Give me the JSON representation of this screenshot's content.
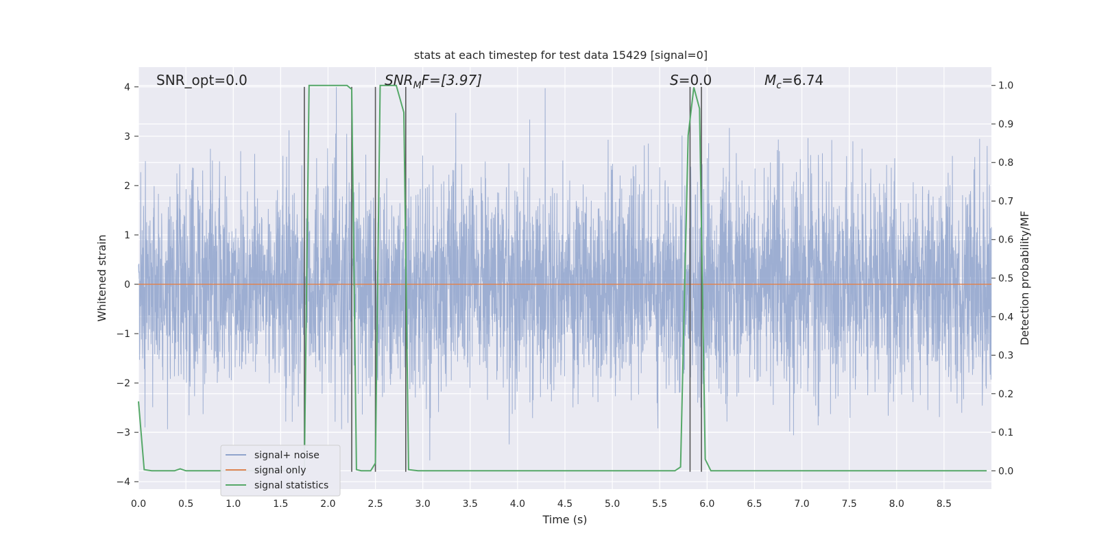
{
  "chart_data": {
    "type": "line",
    "title": "stats at each timestep for test data 15429 [signal=0]",
    "xlabel": "Time (s)",
    "ylabel_left": "Whitened strain",
    "ylabel_right": "Detection probability/MF",
    "xlim": [
      0.0,
      9.0
    ],
    "ylim_left": [
      -4.15,
      4.4
    ],
    "ylim_right": [
      -0.0475,
      1.0475
    ],
    "x_ticks": [
      "0.0",
      "0.5",
      "1.0",
      "1.5",
      "2.0",
      "2.5",
      "3.0",
      "3.5",
      "4.0",
      "4.5",
      "5.0",
      "5.5",
      "6.0",
      "6.5",
      "7.0",
      "7.5",
      "8.0",
      "8.5"
    ],
    "y_ticks_left": [
      "−4",
      "−3",
      "−2",
      "−1",
      "0",
      "1",
      "2",
      "3",
      "4"
    ],
    "y_ticks_right": [
      "0.0",
      "0.1",
      "0.2",
      "0.3",
      "0.4",
      "0.5",
      "0.6",
      "0.7",
      "0.8",
      "0.9",
      "1.0"
    ],
    "grid": true,
    "legend_position": "lower-left",
    "annotations": {
      "snr_opt": "SNR_opt=0.0",
      "snr_mf_main": "SNR",
      "snr_mf_sub": "M",
      "snr_mf_rest": "F=[3.97]",
      "s_main": "S",
      "s_rest": "=0.0",
      "mc_main": "M",
      "mc_sub": "c",
      "mc_rest": "=6.74"
    },
    "series": [
      {
        "name": "signal+ noise",
        "color": "#8fa3cc",
        "kind": "noise",
        "values_description": "gaussian-like whitened noise spanning roughly -3.8 to 4.0"
      },
      {
        "name": "signal only",
        "color": "#dd8452",
        "x": [
          0.0,
          9.0
        ],
        "y": [
          0.0,
          0.0
        ]
      },
      {
        "name": "signal statistics",
        "color": "#55a868",
        "axis": "right",
        "x": [
          0.0,
          0.06,
          0.14,
          0.22,
          0.38,
          0.44,
          0.5,
          1.0,
          1.5,
          1.7,
          1.75,
          1.8,
          1.85,
          2.2,
          2.25,
          2.3,
          2.35,
          2.45,
          2.5,
          2.55,
          2.6,
          2.72,
          2.8,
          2.85,
          2.95,
          3.5,
          4.0,
          5.0,
          5.66,
          5.72,
          5.8,
          5.86,
          5.92,
          5.98,
          6.04,
          6.5,
          7.0,
          8.0,
          8.95
        ],
        "y": [
          0.18,
          0.003,
          0.0,
          0.0,
          0.0,
          0.005,
          0.0,
          0.0,
          0.0,
          0.0,
          0.0,
          1.0,
          1.0,
          1.0,
          0.99,
          0.003,
          0.0,
          0.0,
          0.02,
          1.0,
          1.0,
          1.0,
          0.93,
          0.003,
          0.0,
          0.0,
          0.0,
          0.0,
          0.0,
          0.01,
          0.87,
          0.995,
          0.94,
          0.03,
          0.0,
          0.0,
          0.0,
          0.0,
          0.0
        ]
      }
    ],
    "vertical_lines": {
      "color": "#555555",
      "x": [
        1.75,
        2.25,
        2.5,
        2.82,
        5.82,
        5.94
      ],
      "ymin": -3.8,
      "ymax": 4.0
    }
  }
}
